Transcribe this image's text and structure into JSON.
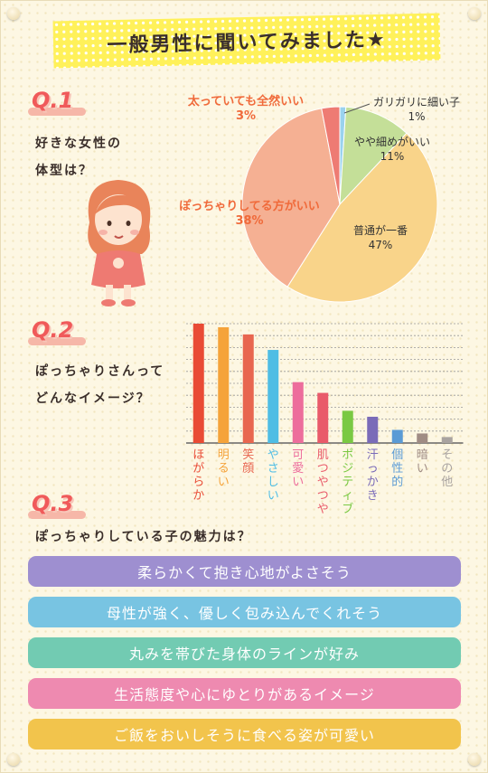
{
  "title": "一般男性に聞いてみました★",
  "q1": {
    "label": "Q.1",
    "question_line1": "好きな女性の",
    "question_line2": "体型は？"
  },
  "q2": {
    "label": "Q.2",
    "question_line1": "ぽっちゃりさんって",
    "question_line2": "どんなイメージ？"
  },
  "q3": {
    "label": "Q.3",
    "question": "ぽっちゃりしている子の魅力は？",
    "answers": [
      {
        "text": "柔らかくて抱き心地がよさそう",
        "color": "#9e8fd0"
      },
      {
        "text": "母性が強く、優しく包み込んでくれそう",
        "color": "#78c4e2"
      },
      {
        "text": "丸みを帯びた身体のラインが好み",
        "color": "#72cbb2"
      },
      {
        "text": "生活態度や心にゆとりがあるイメージ",
        "color": "#ee8ab0"
      },
      {
        "text": "ご飯をおいしそうに食べる姿が可愛い",
        "color": "#f2c44c"
      }
    ]
  },
  "chart_data": [
    {
      "type": "pie",
      "slices": [
        {
          "label": "ガリガリに細い子",
          "value": 1,
          "display": "1%",
          "color": "#9ad2ee"
        },
        {
          "label": "やや細めがいい",
          "value": 11,
          "display": "11%",
          "color": "#c4df98"
        },
        {
          "label": "普通が一番",
          "value": 47,
          "display": "47%",
          "color": "#f9d48a"
        },
        {
          "label": "ぽっちゃりしてる方がいい",
          "value": 38,
          "display": "38%",
          "color": "#f5b093"
        },
        {
          "label": "太っていても全然いい",
          "value": 3,
          "display": "3%",
          "color": "#ee7b73"
        }
      ]
    },
    {
      "type": "bar",
      "categories": [
        "ほがらか",
        "明るい",
        "笑顔",
        "やさしい",
        "可愛い",
        "肌つやつや",
        "ポジティブ",
        "汗っかき",
        "個性的",
        "暗い",
        "その他"
      ],
      "values": [
        100,
        97,
        91,
        78,
        51,
        42,
        27,
        22,
        11,
        8,
        5
      ],
      "colors": [
        "#e94b35",
        "#f5a33a",
        "#e8664f",
        "#4fbde4",
        "#ed6d9c",
        "#e95a6a",
        "#7ac943",
        "#7a6bb8",
        "#5b9bd5",
        "#a08c84",
        "#a9a3a0"
      ],
      "ylim": [
        0,
        100
      ],
      "grid": true
    }
  ]
}
